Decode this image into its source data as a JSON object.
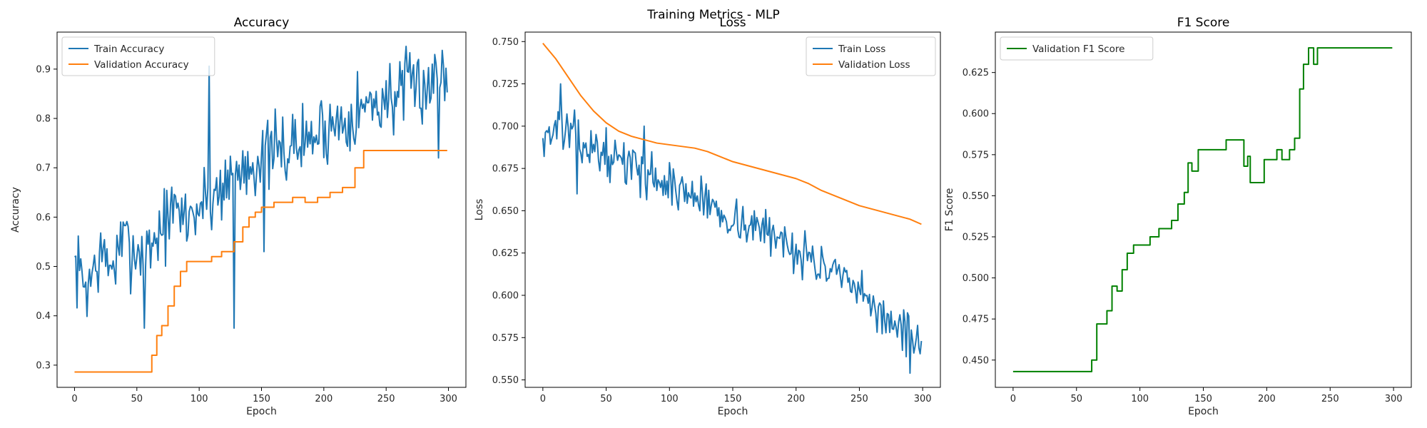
{
  "figure": {
    "suptitle": "Training Metrics - MLP"
  },
  "chart_data": [
    {
      "type": "line",
      "title": "Accuracy",
      "xlabel": "Epoch",
      "ylabel": "Accuracy",
      "xlim": [
        -14,
        314
      ],
      "ylim": [
        0.255,
        0.975
      ],
      "xticks": [
        0,
        50,
        100,
        150,
        200,
        250,
        300
      ],
      "yticks": [
        0.3,
        0.4,
        0.5,
        0.6,
        0.7,
        0.8,
        0.9
      ],
      "ytick_decimals": 1,
      "grid": false,
      "legend_position": "top-left",
      "series": [
        {
          "name": "Train Accuracy",
          "color": "#1f77b4",
          "style": "noisy",
          "points": [
            [
              0,
              0.5
            ],
            [
              10,
              0.46
            ],
            [
              20,
              0.52
            ],
            [
              30,
              0.5
            ],
            [
              40,
              0.55
            ],
            [
              50,
              0.53
            ],
            [
              60,
              0.54
            ],
            [
              70,
              0.58
            ],
            [
              80,
              0.61
            ],
            [
              90,
              0.6
            ],
            [
              100,
              0.62
            ],
            [
              110,
              0.64
            ],
            [
              120,
              0.67
            ],
            [
              130,
              0.69
            ],
            [
              140,
              0.71
            ],
            [
              150,
              0.72
            ],
            [
              160,
              0.73
            ],
            [
              170,
              0.74
            ],
            [
              180,
              0.75
            ],
            [
              190,
              0.76
            ],
            [
              200,
              0.78
            ],
            [
              210,
              0.79
            ],
            [
              220,
              0.81
            ],
            [
              230,
              0.82
            ],
            [
              240,
              0.83
            ],
            [
              250,
              0.84
            ],
            [
              260,
              0.85
            ],
            [
              270,
              0.86
            ],
            [
              280,
              0.87
            ],
            [
              290,
              0.88
            ],
            [
              299,
              0.89
            ]
          ],
          "noise": 0.07,
          "seed": 7,
          "spikes": [
            [
              56,
              0.375
            ],
            [
              108,
              0.906
            ],
            [
              128,
              0.375
            ],
            [
              152,
              0.53
            ],
            [
              295,
              0.938
            ],
            [
              292,
              0.72
            ]
          ]
        },
        {
          "name": "Validation Accuracy",
          "color": "#ff7f0e",
          "style": "step",
          "points": [
            [
              0,
              0.286
            ],
            [
              58,
              0.286
            ],
            [
              62,
              0.32
            ],
            [
              66,
              0.36
            ],
            [
              70,
              0.38
            ],
            [
              75,
              0.42
            ],
            [
              80,
              0.46
            ],
            [
              85,
              0.49
            ],
            [
              90,
              0.51
            ],
            [
              110,
              0.52
            ],
            [
              118,
              0.53
            ],
            [
              128,
              0.55
            ],
            [
              135,
              0.58
            ],
            [
              140,
              0.6
            ],
            [
              145,
              0.61
            ],
            [
              150,
              0.62
            ],
            [
              160,
              0.63
            ],
            [
              175,
              0.64
            ],
            [
              185,
              0.63
            ],
            [
              195,
              0.64
            ],
            [
              205,
              0.65
            ],
            [
              215,
              0.66
            ],
            [
              225,
              0.7
            ],
            [
              232,
              0.735
            ],
            [
              299,
              0.735
            ]
          ]
        }
      ]
    },
    {
      "type": "line",
      "title": "Loss",
      "xlabel": "Epoch",
      "ylabel": "Loss",
      "xlim": [
        -14,
        314
      ],
      "ylim": [
        0.5456,
        0.7556
      ],
      "xticks": [
        0,
        50,
        100,
        150,
        200,
        250,
        300
      ],
      "yticks": [
        0.55,
        0.575,
        0.6,
        0.625,
        0.65,
        0.675,
        0.7,
        0.725,
        0.75
      ],
      "ytick_decimals": 3,
      "grid": false,
      "legend_position": "top-right",
      "series": [
        {
          "name": "Train Loss",
          "color": "#1f77b4",
          "style": "noisy",
          "points": [
            [
              0,
              0.694
            ],
            [
              15,
              0.7
            ],
            [
              30,
              0.69
            ],
            [
              50,
              0.683
            ],
            [
              75,
              0.675
            ],
            [
              100,
              0.665
            ],
            [
              125,
              0.657
            ],
            [
              150,
              0.645
            ],
            [
              175,
              0.638
            ],
            [
              200,
              0.628
            ],
            [
              225,
              0.615
            ],
            [
              250,
              0.6
            ],
            [
              275,
              0.585
            ],
            [
              299,
              0.57
            ]
          ],
          "noise": 0.012,
          "seed": 13,
          "spikes": [
            [
              14,
              0.725
            ],
            [
              27,
              0.66
            ],
            [
              80,
              0.7
            ],
            [
              290,
              0.554
            ],
            [
              299,
              0.573
            ]
          ]
        },
        {
          "name": "Validation Loss",
          "color": "#ff7f0e",
          "style": "smooth",
          "points": [
            [
              0,
              0.749
            ],
            [
              10,
              0.74
            ],
            [
              20,
              0.729
            ],
            [
              30,
              0.718
            ],
            [
              40,
              0.709
            ],
            [
              50,
              0.702
            ],
            [
              60,
              0.697
            ],
            [
              70,
              0.694
            ],
            [
              80,
              0.692
            ],
            [
              90,
              0.69
            ],
            [
              100,
              0.689
            ],
            [
              110,
              0.688
            ],
            [
              120,
              0.687
            ],
            [
              130,
              0.685
            ],
            [
              140,
              0.682
            ],
            [
              150,
              0.679
            ],
            [
              160,
              0.677
            ],
            [
              170,
              0.675
            ],
            [
              180,
              0.673
            ],
            [
              190,
              0.671
            ],
            [
              200,
              0.669
            ],
            [
              210,
              0.666
            ],
            [
              220,
              0.662
            ],
            [
              230,
              0.659
            ],
            [
              240,
              0.656
            ],
            [
              250,
              0.653
            ],
            [
              260,
              0.651
            ],
            [
              270,
              0.649
            ],
            [
              280,
              0.647
            ],
            [
              290,
              0.645
            ],
            [
              299,
              0.642
            ]
          ]
        }
      ]
    },
    {
      "type": "line",
      "title": "F1 Score",
      "xlabel": "Epoch",
      "ylabel": "F1 Score",
      "xlim": [
        -14,
        314
      ],
      "ylim": [
        0.4334,
        0.6496
      ],
      "xticks": [
        0,
        50,
        100,
        150,
        200,
        250,
        300
      ],
      "yticks": [
        0.45,
        0.475,
        0.5,
        0.525,
        0.55,
        0.575,
        0.6,
        0.625
      ],
      "ytick_decimals": 3,
      "grid": false,
      "legend_position": "top-left",
      "series": [
        {
          "name": "Validation F1 Score",
          "color": "#008000",
          "style": "step",
          "points": [
            [
              0,
              0.443
            ],
            [
              58,
              0.443
            ],
            [
              62,
              0.45
            ],
            [
              66,
              0.472
            ],
            [
              70,
              0.472
            ],
            [
              74,
              0.48
            ],
            [
              78,
              0.495
            ],
            [
              82,
              0.492
            ],
            [
              86,
              0.505
            ],
            [
              90,
              0.515
            ],
            [
              95,
              0.52
            ],
            [
              108,
              0.525
            ],
            [
              115,
              0.53
            ],
            [
              125,
              0.535
            ],
            [
              130,
              0.545
            ],
            [
              135,
              0.552
            ],
            [
              138,
              0.57
            ],
            [
              141,
              0.565
            ],
            [
              146,
              0.578
            ],
            [
              168,
              0.584
            ],
            [
              182,
              0.568
            ],
            [
              185,
              0.574
            ],
            [
              187,
              0.558
            ],
            [
              198,
              0.572
            ],
            [
              208,
              0.578
            ],
            [
              212,
              0.572
            ],
            [
              218,
              0.578
            ],
            [
              222,
              0.585
            ],
            [
              226,
              0.615
            ],
            [
              229,
              0.63
            ],
            [
              233,
              0.64
            ],
            [
              237,
              0.63
            ],
            [
              240,
              0.64
            ],
            [
              299,
              0.64
            ]
          ]
        }
      ]
    }
  ]
}
